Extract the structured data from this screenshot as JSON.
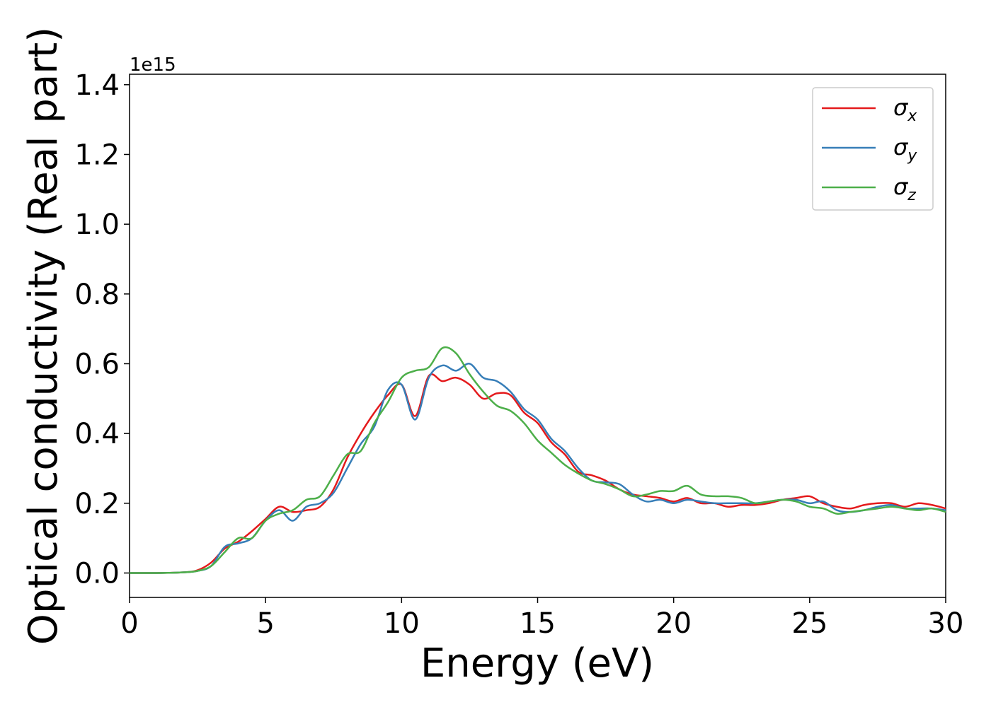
{
  "chart_data": {
    "type": "line",
    "title": "",
    "xlabel": "Energy (eV)",
    "ylabel": "Optical conductivity (Real part)",
    "y_offset_label": "1e15",
    "xlim": [
      0,
      30
    ],
    "ylim": [
      -0.07,
      1.43
    ],
    "grid": false,
    "legend_position": "top-right",
    "x_ticks": [
      "0",
      "5",
      "10",
      "15",
      "20",
      "25",
      "30"
    ],
    "y_ticks": [
      "0.0",
      "0.2",
      "0.4",
      "0.6",
      "0.8",
      "1.0",
      "1.2",
      "1.4"
    ],
    "series": [
      {
        "name": "σx",
        "symbol": "σ",
        "subscript": "x",
        "color": "#e41a1c",
        "x": [
          0,
          1,
          2,
          2.5,
          3,
          3.5,
          4,
          4.5,
          5,
          5.5,
          6,
          6.5,
          7,
          7.5,
          8,
          8.5,
          9,
          9.5,
          10,
          10.5,
          11,
          11.5,
          12,
          12.5,
          13,
          13.5,
          14,
          14.5,
          15,
          15.5,
          16,
          16.5,
          17,
          17.5,
          18,
          18.5,
          19,
          19.5,
          20,
          20.5,
          21,
          21.5,
          22,
          22.5,
          23,
          23.5,
          24,
          24.5,
          25,
          25.5,
          26,
          26.5,
          27,
          27.5,
          28,
          28.5,
          29,
          29.5,
          30
        ],
        "values": [
          0,
          0,
          0.002,
          0.008,
          0.03,
          0.07,
          0.09,
          0.12,
          0.155,
          0.19,
          0.175,
          0.18,
          0.19,
          0.24,
          0.33,
          0.4,
          0.46,
          0.51,
          0.54,
          0.45,
          0.565,
          0.55,
          0.56,
          0.54,
          0.5,
          0.515,
          0.51,
          0.46,
          0.43,
          0.375,
          0.34,
          0.29,
          0.28,
          0.265,
          0.24,
          0.225,
          0.22,
          0.215,
          0.205,
          0.215,
          0.2,
          0.2,
          0.19,
          0.195,
          0.195,
          0.2,
          0.21,
          0.215,
          0.22,
          0.2,
          0.19,
          0.185,
          0.195,
          0.2,
          0.2,
          0.19,
          0.2,
          0.195,
          0.185
        ]
      },
      {
        "name": "σy",
        "symbol": "σ",
        "subscript": "y",
        "color": "#377eb8",
        "x": [
          0,
          1,
          2,
          2.5,
          3,
          3.5,
          4,
          4.5,
          5,
          5.5,
          6,
          6.5,
          7,
          7.5,
          8,
          8.5,
          9,
          9.5,
          10,
          10.5,
          11,
          11.5,
          12,
          12.5,
          13,
          13.5,
          14,
          14.5,
          15,
          15.5,
          16,
          16.5,
          17,
          17.5,
          18,
          18.5,
          19,
          19.5,
          20,
          20.5,
          21,
          21.5,
          22,
          22.5,
          23,
          23.5,
          24,
          24.5,
          25,
          25.5,
          26,
          26.5,
          27,
          27.5,
          28,
          28.5,
          29,
          29.5,
          30
        ],
        "values": [
          0,
          0,
          0.002,
          0.006,
          0.02,
          0.075,
          0.085,
          0.1,
          0.15,
          0.18,
          0.15,
          0.19,
          0.2,
          0.23,
          0.3,
          0.37,
          0.42,
          0.525,
          0.54,
          0.44,
          0.56,
          0.595,
          0.58,
          0.6,
          0.56,
          0.55,
          0.52,
          0.47,
          0.44,
          0.385,
          0.35,
          0.3,
          0.265,
          0.26,
          0.255,
          0.225,
          0.205,
          0.21,
          0.2,
          0.21,
          0.205,
          0.2,
          0.2,
          0.2,
          0.2,
          0.205,
          0.21,
          0.21,
          0.2,
          0.205,
          0.18,
          0.175,
          0.18,
          0.19,
          0.195,
          0.185,
          0.185,
          0.185,
          0.18
        ]
      },
      {
        "name": "σz",
        "symbol": "σ",
        "subscript": "z",
        "color": "#4daf4a",
        "x": [
          0,
          1,
          2,
          2.5,
          3,
          3.5,
          4,
          4.5,
          5,
          5.5,
          6,
          6.5,
          7,
          7.5,
          8,
          8.5,
          9,
          9.5,
          10,
          10.5,
          11,
          11.5,
          12,
          12.5,
          13,
          13.5,
          14,
          14.5,
          15,
          15.5,
          16,
          16.5,
          17,
          17.5,
          18,
          18.5,
          19,
          19.5,
          20,
          20.5,
          21,
          21.5,
          22,
          22.5,
          23,
          23.5,
          24,
          24.5,
          25,
          25.5,
          26,
          26.5,
          27,
          27.5,
          28,
          28.5,
          29,
          29.5,
          30
        ],
        "values": [
          0,
          0,
          0.002,
          0.006,
          0.02,
          0.06,
          0.1,
          0.1,
          0.15,
          0.17,
          0.18,
          0.21,
          0.22,
          0.28,
          0.34,
          0.35,
          0.43,
          0.49,
          0.56,
          0.58,
          0.59,
          0.645,
          0.63,
          0.57,
          0.52,
          0.48,
          0.465,
          0.43,
          0.38,
          0.345,
          0.31,
          0.285,
          0.265,
          0.255,
          0.24,
          0.22,
          0.225,
          0.235,
          0.235,
          0.25,
          0.225,
          0.22,
          0.22,
          0.215,
          0.2,
          0.205,
          0.21,
          0.205,
          0.19,
          0.185,
          0.17,
          0.175,
          0.18,
          0.185,
          0.19,
          0.185,
          0.18,
          0.185,
          0.175
        ]
      }
    ]
  }
}
